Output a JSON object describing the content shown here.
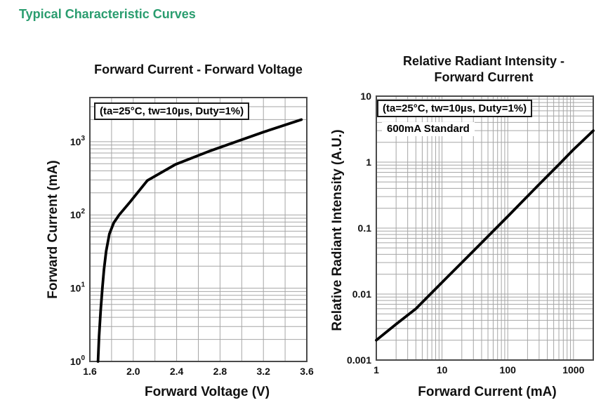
{
  "header": {
    "title": "Typical Characteristic Curves",
    "color": "#2a9d6f"
  },
  "colors": {
    "grid": "#a6a6a6",
    "plot_border": "#4a4a4a",
    "curve": "#000000",
    "text": "#111111"
  },
  "chart_data": [
    {
      "type": "line",
      "title": "Forward Current - Forward Voltage",
      "xlabel": "Forward Voltage (V)",
      "ylabel": "Forward Current (mA)",
      "annotation": "(ta=25°C, tw=10µs, Duty=1%)",
      "x_scale": "linear",
      "y_scale": "log",
      "xlim": [
        1.6,
        3.6
      ],
      "ylim": [
        1,
        4000
      ],
      "x_minor_step": 0.2,
      "grid": true,
      "legend": "none",
      "xticks": [
        {
          "v": 1.6,
          "label": "1.6"
        },
        {
          "v": 2.0,
          "label": "2.0"
        },
        {
          "v": 2.4,
          "label": "2.4"
        },
        {
          "v": 2.8,
          "label": "2.8"
        },
        {
          "v": 3.2,
          "label": "3.2"
        },
        {
          "v": 3.6,
          "label": "3.6"
        }
      ],
      "yticks": [
        {
          "v": 1,
          "label": "10",
          "sup": "0"
        },
        {
          "v": 10,
          "label": "10",
          "sup": "1"
        },
        {
          "v": 100,
          "label": "10",
          "sup": "2"
        },
        {
          "v": 1000,
          "label": "10",
          "sup": "3"
        }
      ],
      "series": [
        {
          "name": "forward-current-vs-voltage",
          "color": "#000000",
          "width": 3.8,
          "points": [
            [
              1.675,
              1
            ],
            [
              1.685,
              2.2
            ],
            [
              1.7,
              5
            ],
            [
              1.715,
              10
            ],
            [
              1.73,
              18
            ],
            [
              1.75,
              32
            ],
            [
              1.78,
              55
            ],
            [
              1.82,
              78
            ],
            [
              1.87,
              100
            ],
            [
              1.97,
              150
            ],
            [
              2.13,
              295
            ],
            [
              2.39,
              490
            ],
            [
              2.71,
              750
            ],
            [
              2.95,
              1000
            ],
            [
              3.2,
              1350
            ],
            [
              3.55,
              2000
            ]
          ]
        }
      ]
    },
    {
      "type": "line",
      "title": "Relative Radiant Intensity -\nForward Current",
      "xlabel": "Forward Current (mA)",
      "ylabel": "Relative Radiant Intensity (A.U.)",
      "annotation": "(ta=25°C, tw=10µs, Duty=1%)",
      "extra_label": "600mA Standard",
      "x_scale": "log",
      "y_scale": "log",
      "xlim": [
        1,
        2000
      ],
      "ylim": [
        0.001,
        10
      ],
      "grid": true,
      "legend": "none",
      "xticks": [
        {
          "v": 1,
          "label": "1"
        },
        {
          "v": 10,
          "label": "10"
        },
        {
          "v": 100,
          "label": "100"
        },
        {
          "v": 1000,
          "label": "1000"
        }
      ],
      "yticks": [
        {
          "v": 10,
          "label": "10"
        },
        {
          "v": 1,
          "label": "1"
        },
        {
          "v": 0.1,
          "label": "0.1"
        },
        {
          "v": 0.01,
          "label": "0.01"
        },
        {
          "v": 0.001,
          "label": "0.001"
        }
      ],
      "series": [
        {
          "name": "relative-radiant-intensity-vs-current",
          "color": "#000000",
          "width": 3.8,
          "points": [
            [
              1,
              0.002
            ],
            [
              2,
              0.0035
            ],
            [
              4,
              0.006
            ],
            [
              10,
              0.015
            ],
            [
              30,
              0.045
            ],
            [
              100,
              0.15
            ],
            [
              300,
              0.46
            ],
            [
              600,
              0.92
            ],
            [
              1000,
              1.55
            ],
            [
              2000,
              3.0
            ]
          ]
        }
      ]
    }
  ]
}
